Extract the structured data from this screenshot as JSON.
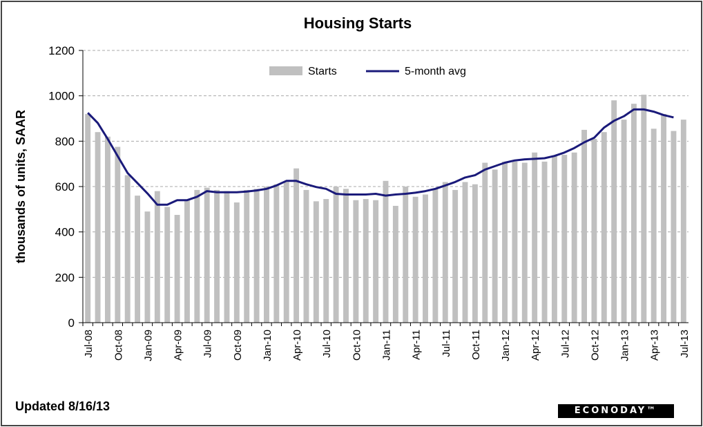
{
  "footer": {
    "updated": "Updated 8/16/13"
  },
  "logo": {
    "text": "ECONODAY™"
  },
  "chart_data": {
    "type": "bar",
    "title": "Housing  Starts",
    "ylabel": "thousands of units, SAAR",
    "xlabel": "",
    "ylim": [
      0,
      1200
    ],
    "yticks": [
      0,
      200,
      400,
      600,
      800,
      1000,
      1200
    ],
    "grid": true,
    "legend_position": "top-center",
    "colors": {
      "bars": "#c0c0c0",
      "line": "#1a1a7a",
      "grid": "#a8a8a8"
    },
    "categories": [
      "Jul-08",
      "Aug-08",
      "Sep-08",
      "Oct-08",
      "Nov-08",
      "Dec-08",
      "Jan-09",
      "Feb-09",
      "Mar-09",
      "Apr-09",
      "May-09",
      "Jun-09",
      "Jul-09",
      "Aug-09",
      "Sep-09",
      "Oct-09",
      "Nov-09",
      "Dec-09",
      "Jan-10",
      "Feb-10",
      "Mar-10",
      "Apr-10",
      "May-10",
      "Jun-10",
      "Jul-10",
      "Aug-10",
      "Sep-10",
      "Oct-10",
      "Nov-10",
      "Dec-10",
      "Jan-11",
      "Feb-11",
      "Mar-11",
      "Apr-11",
      "May-11",
      "Jun-11",
      "Jul-11",
      "Aug-11",
      "Sep-11",
      "Oct-11",
      "Nov-11",
      "Dec-11",
      "Jan-12",
      "Feb-12",
      "Mar-12",
      "Apr-12",
      "May-12",
      "Jun-12",
      "Jul-12",
      "Aug-12",
      "Sep-12",
      "Oct-12",
      "Nov-12",
      "Dec-12",
      "Jan-13",
      "Feb-13",
      "Mar-13",
      "Apr-13",
      "May-13",
      "Jun-13",
      "Jul-13"
    ],
    "tick_labels": [
      "Jul-08",
      "Oct-08",
      "Jan-09",
      "Apr-09",
      "Jul-09",
      "Oct-09",
      "Jan-10",
      "Apr-10",
      "Jul-10",
      "Oct-10",
      "Jan-11",
      "Apr-11",
      "Jul-11",
      "Oct-11",
      "Jan-12",
      "Apr-12",
      "Jul-12",
      "Oct-12",
      "Jan-13",
      "Apr-13",
      "Jul-13"
    ],
    "series": [
      {
        "name": "Starts",
        "kind": "bar",
        "values": [
          920,
          840,
          820,
          775,
          650,
          560,
          490,
          580,
          510,
          475,
          540,
          585,
          595,
          585,
          580,
          530,
          585,
          590,
          600,
          610,
          620,
          680,
          585,
          535,
          545,
          600,
          590,
          540,
          545,
          540,
          625,
          515,
          600,
          555,
          565,
          590,
          620,
          585,
          620,
          610,
          705,
          675,
          710,
          710,
          705,
          750,
          710,
          735,
          740,
          750,
          850,
          810,
          840,
          980,
          895,
          965,
          1005,
          855,
          920,
          845,
          895
        ]
      },
      {
        "name": "5-month avg",
        "kind": "line",
        "values": [
          925,
          880,
          810,
          735,
          660,
          615,
          570,
          520,
          520,
          540,
          540,
          555,
          580,
          575,
          575,
          575,
          578,
          583,
          590,
          605,
          625,
          625,
          610,
          598,
          590,
          568,
          565,
          565,
          565,
          568,
          560,
          565,
          568,
          573,
          580,
          590,
          605,
          620,
          640,
          650,
          675,
          690,
          705,
          715,
          720,
          722,
          725,
          735,
          750,
          770,
          795,
          815,
          860,
          890,
          910,
          940,
          940,
          930,
          915,
          905,
          null
        ]
      }
    ]
  }
}
